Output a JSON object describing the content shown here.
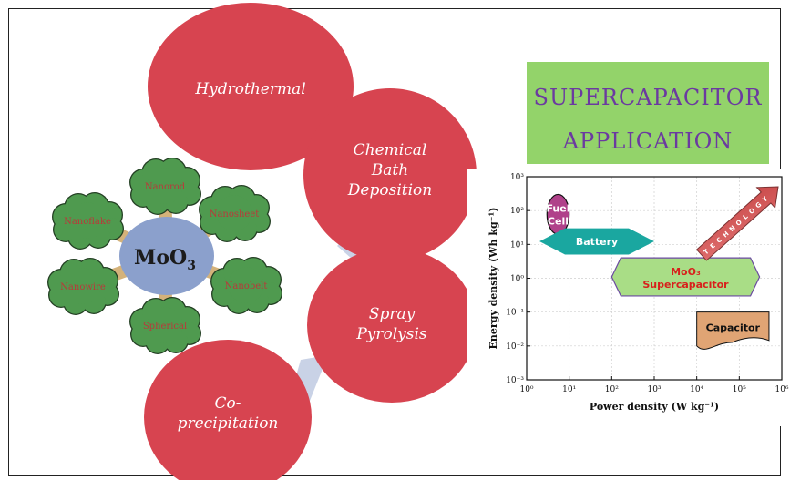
{
  "center": {
    "label": "MoO",
    "sub": "3"
  },
  "morphologies": [
    "Nanorod",
    "Nanosheet",
    "Nanobelt",
    "Spherical",
    "Nanowire",
    "Nanoflake"
  ],
  "methods": [
    {
      "lines": [
        "Hydrothermal"
      ]
    },
    {
      "lines": [
        "Chemical",
        "Bath",
        "Deposition"
      ]
    },
    {
      "lines": [
        "Spray",
        "Pyrolysis"
      ]
    },
    {
      "lines": [
        "Co-",
        "precipitation"
      ]
    }
  ],
  "banner": {
    "line1": "SUPERCAPACITOR",
    "line2": "APPLICATION"
  },
  "colors": {
    "method": "#d74450",
    "cloud": "#4f9a4f",
    "center": "#8ba0cc",
    "banner": "#93d36a",
    "banner_text": "#6b3aa0"
  },
  "chart_data": {
    "type": "scatter",
    "title": "",
    "xlabel": "Power density (W kg⁻¹)",
    "ylabel": "Energy density (Wh kg⁻¹)",
    "xscale": "log",
    "yscale": "log",
    "xlim": [
      1,
      1000000
    ],
    "ylim": [
      0.001,
      1000
    ],
    "xticks": [
      "10⁰",
      "10¹",
      "10²",
      "10³",
      "10⁴",
      "10⁵",
      "10⁶"
    ],
    "yticks": [
      "10³",
      "10²",
      "10¹",
      "10⁰",
      "10⁻¹",
      "10⁻²",
      "10⁻³"
    ],
    "grid": true,
    "regions": [
      {
        "name": "Fuel Cell",
        "lines": [
          "Fuel",
          "Cell"
        ],
        "x": [
          3,
          10
        ],
        "y": [
          20,
          300
        ]
      },
      {
        "name": "Battery",
        "lines": [
          "Battery"
        ],
        "x": [
          2,
          1000
        ],
        "y": [
          5,
          30
        ]
      },
      {
        "name": "MoO3 Supercapacitor",
        "lines": [
          "MoO₃",
          "Supercapacitor"
        ],
        "x": [
          100,
          300000
        ],
        "y": [
          0.3,
          4
        ]
      },
      {
        "name": "Capacitor",
        "lines": [
          "Capacitor"
        ],
        "x": [
          10000,
          500000
        ],
        "y": [
          0.01,
          0.1
        ]
      }
    ],
    "arrow_text": [
      "T",
      "E",
      "C",
      "H",
      "N",
      "O",
      "L",
      "O",
      "G",
      "Y"
    ]
  }
}
